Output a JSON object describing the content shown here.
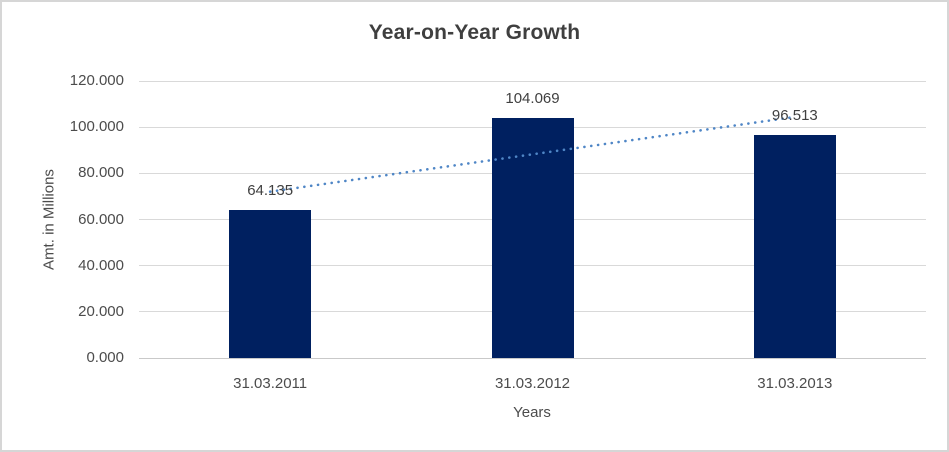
{
  "chart_data": {
    "type": "bar",
    "title": "Year-on-Year Growth",
    "categories": [
      "31.03.2011",
      "31.03.2012",
      "31.03.2013"
    ],
    "values": [
      64.135,
      104.069,
      96.513
    ],
    "data_labels": [
      "64.135",
      "104.069",
      "96.513"
    ],
    "xlabel": "Years",
    "ylabel": "Amt. in Millions",
    "ylim": [
      0,
      120
    ],
    "yticks": [
      {
        "value": 0,
        "label": "0.000"
      },
      {
        "value": 20,
        "label": "20.000"
      },
      {
        "value": 40,
        "label": "40.000"
      },
      {
        "value": 60,
        "label": "60.000"
      },
      {
        "value": 80,
        "label": "80.000"
      },
      {
        "value": 100,
        "label": "100.000"
      },
      {
        "value": 120,
        "label": "120.000"
      }
    ],
    "grid": true,
    "legend_position": "none",
    "bar_color": "#002060",
    "trendline": {
      "type": "linear",
      "style": "dotted",
      "color": "#4f86c6"
    }
  }
}
